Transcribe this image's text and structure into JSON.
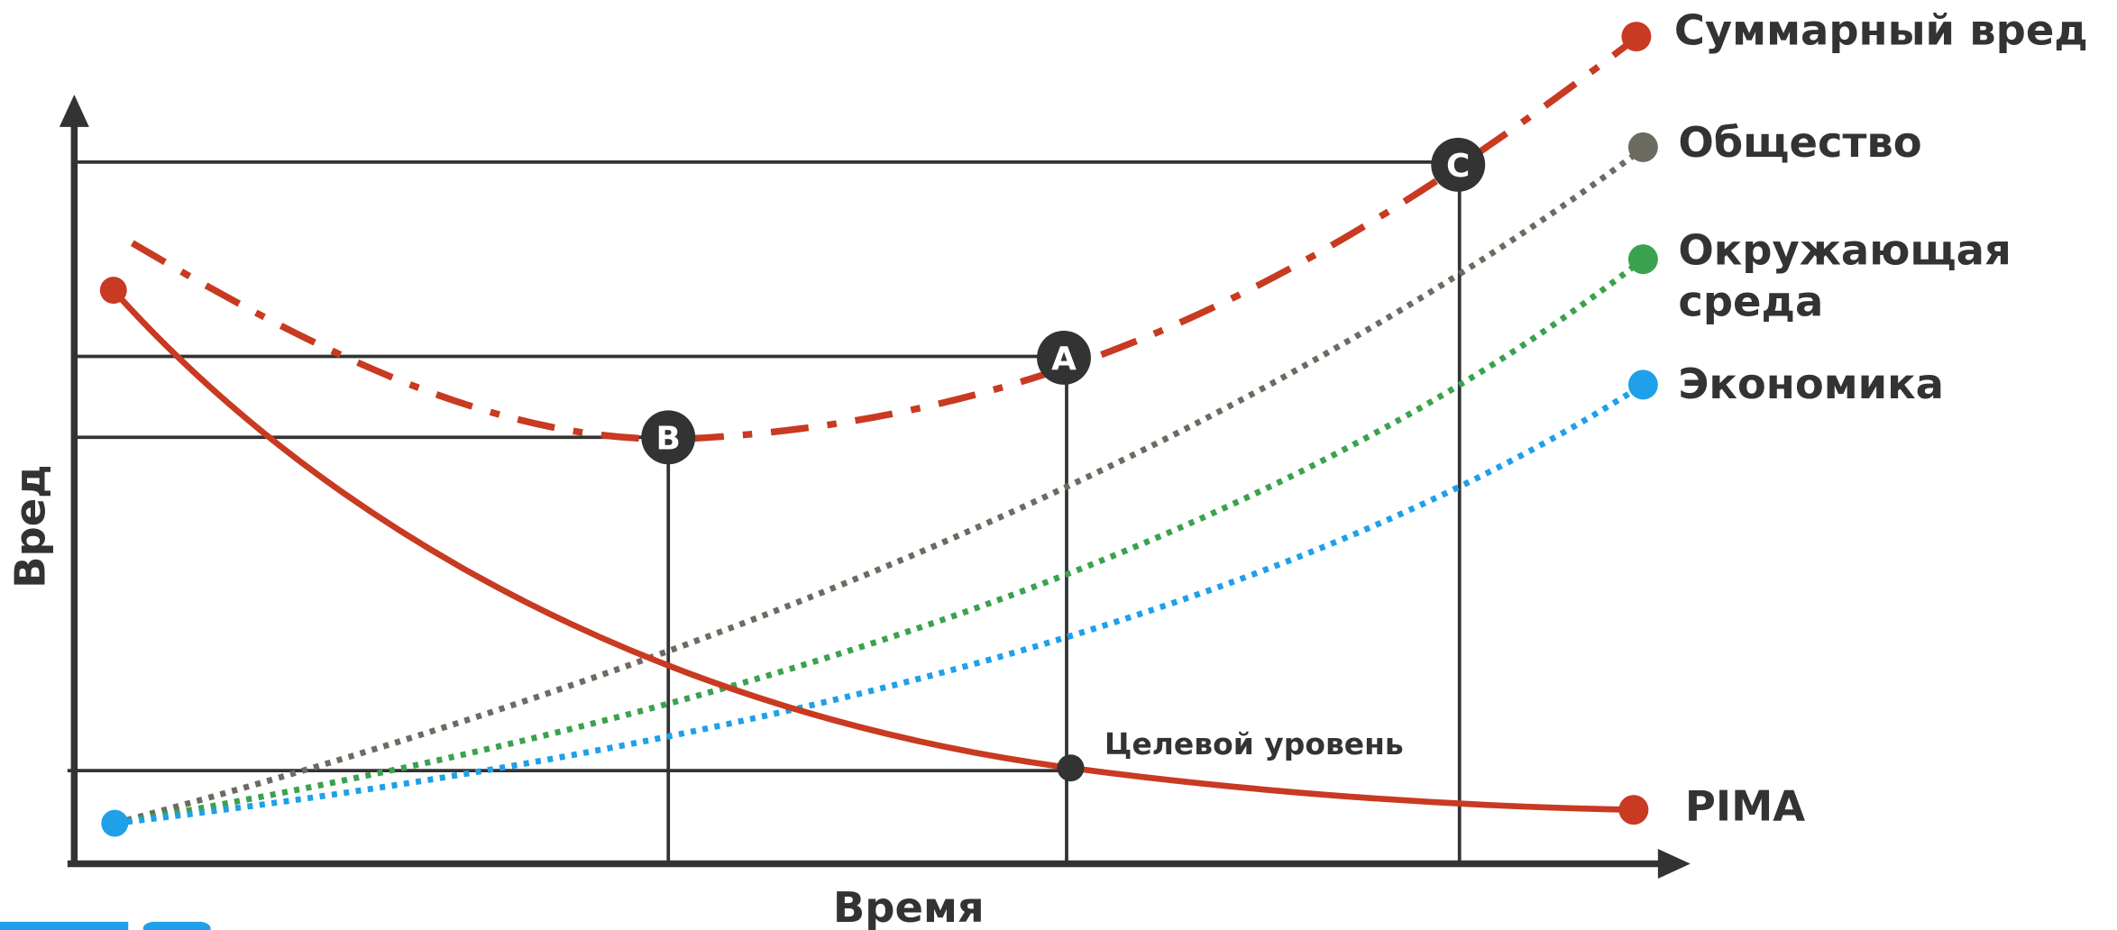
{
  "axes": {
    "x_label": "Время",
    "y_label": "Вред"
  },
  "curves": [
    {
      "label": "Суммарный вред"
    },
    {
      "label": "Общество"
    },
    {
      "label": "Окружающая среда",
      "lines": [
        "Окружающая",
        "среда"
      ]
    },
    {
      "label": "Экономика"
    },
    {
      "label": "PIMA"
    }
  ],
  "points": [
    {
      "label": "A"
    },
    {
      "label": "B"
    },
    {
      "label": "C"
    }
  ],
  "target_label": "Целевой уровень"
}
